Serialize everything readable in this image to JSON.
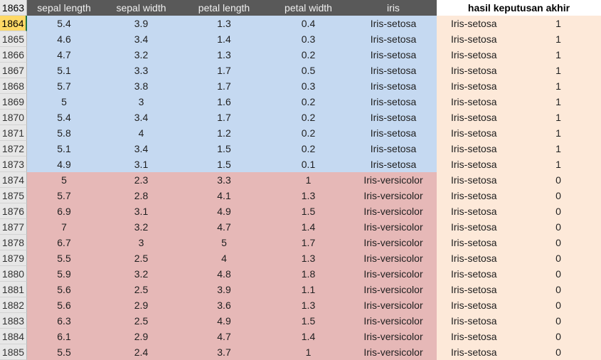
{
  "header": {
    "row_number": "1863",
    "columns": [
      "sepal length",
      "sepal width",
      "petal length",
      "petal width",
      "iris"
    ],
    "result_title": "hasil keputusan akhir"
  },
  "active_row": "1864",
  "rows": [
    {
      "n": "1864",
      "sl": "5.4",
      "sw": "3.9",
      "pl": "1.3",
      "pw": "0.4",
      "iris": "Iris-setosa",
      "dec": "Iris-setosa",
      "v": "1"
    },
    {
      "n": "1865",
      "sl": "4.6",
      "sw": "3.4",
      "pl": "1.4",
      "pw": "0.3",
      "iris": "Iris-setosa",
      "dec": "Iris-setosa",
      "v": "1"
    },
    {
      "n": "1866",
      "sl": "4.7",
      "sw": "3.2",
      "pl": "1.3",
      "pw": "0.2",
      "iris": "Iris-setosa",
      "dec": "Iris-setosa",
      "v": "1"
    },
    {
      "n": "1867",
      "sl": "5.1",
      "sw": "3.3",
      "pl": "1.7",
      "pw": "0.5",
      "iris": "Iris-setosa",
      "dec": "Iris-setosa",
      "v": "1"
    },
    {
      "n": "1868",
      "sl": "5.7",
      "sw": "3.8",
      "pl": "1.7",
      "pw": "0.3",
      "iris": "Iris-setosa",
      "dec": "Iris-setosa",
      "v": "1"
    },
    {
      "n": "1869",
      "sl": "5",
      "sw": "3",
      "pl": "1.6",
      "pw": "0.2",
      "iris": "Iris-setosa",
      "dec": "Iris-setosa",
      "v": "1"
    },
    {
      "n": "1870",
      "sl": "5.4",
      "sw": "3.4",
      "pl": "1.7",
      "pw": "0.2",
      "iris": "Iris-setosa",
      "dec": "Iris-setosa",
      "v": "1"
    },
    {
      "n": "1871",
      "sl": "5.8",
      "sw": "4",
      "pl": "1.2",
      "pw": "0.2",
      "iris": "Iris-setosa",
      "dec": "Iris-setosa",
      "v": "1"
    },
    {
      "n": "1872",
      "sl": "5.1",
      "sw": "3.4",
      "pl": "1.5",
      "pw": "0.2",
      "iris": "Iris-setosa",
      "dec": "Iris-setosa",
      "v": "1"
    },
    {
      "n": "1873",
      "sl": "4.9",
      "sw": "3.1",
      "pl": "1.5",
      "pw": "0.1",
      "iris": "Iris-setosa",
      "dec": "Iris-setosa",
      "v": "1"
    },
    {
      "n": "1874",
      "sl": "5",
      "sw": "2.3",
      "pl": "3.3",
      "pw": "1",
      "iris": "Iris-versicolor",
      "dec": "Iris-setosa",
      "v": "0"
    },
    {
      "n": "1875",
      "sl": "5.7",
      "sw": "2.8",
      "pl": "4.1",
      "pw": "1.3",
      "iris": "Iris-versicolor",
      "dec": "Iris-setosa",
      "v": "0"
    },
    {
      "n": "1876",
      "sl": "6.9",
      "sw": "3.1",
      "pl": "4.9",
      "pw": "1.5",
      "iris": "Iris-versicolor",
      "dec": "Iris-setosa",
      "v": "0"
    },
    {
      "n": "1877",
      "sl": "7",
      "sw": "3.2",
      "pl": "4.7",
      "pw": "1.4",
      "iris": "Iris-versicolor",
      "dec": "Iris-setosa",
      "v": "0"
    },
    {
      "n": "1878",
      "sl": "6.7",
      "sw": "3",
      "pl": "5",
      "pw": "1.7",
      "iris": "Iris-versicolor",
      "dec": "Iris-setosa",
      "v": "0"
    },
    {
      "n": "1879",
      "sl": "5.5",
      "sw": "2.5",
      "pl": "4",
      "pw": "1.3",
      "iris": "Iris-versicolor",
      "dec": "Iris-setosa",
      "v": "0"
    },
    {
      "n": "1880",
      "sl": "5.9",
      "sw": "3.2",
      "pl": "4.8",
      "pw": "1.8",
      "iris": "Iris-versicolor",
      "dec": "Iris-setosa",
      "v": "0"
    },
    {
      "n": "1881",
      "sl": "5.6",
      "sw": "2.5",
      "pl": "3.9",
      "pw": "1.1",
      "iris": "Iris-versicolor",
      "dec": "Iris-setosa",
      "v": "0"
    },
    {
      "n": "1882",
      "sl": "5.6",
      "sw": "2.9",
      "pl": "3.6",
      "pw": "1.3",
      "iris": "Iris-versicolor",
      "dec": "Iris-setosa",
      "v": "0"
    },
    {
      "n": "1883",
      "sl": "6.3",
      "sw": "2.5",
      "pl": "4.9",
      "pw": "1.5",
      "iris": "Iris-versicolor",
      "dec": "Iris-setosa",
      "v": "0"
    },
    {
      "n": "1884",
      "sl": "6.1",
      "sw": "2.9",
      "pl": "4.7",
      "pw": "1.4",
      "iris": "Iris-versicolor",
      "dec": "Iris-setosa",
      "v": "0"
    },
    {
      "n": "1885",
      "sl": "5.5",
      "sw": "2.4",
      "pl": "3.7",
      "pw": "1",
      "iris": "Iris-versicolor",
      "dec": "Iris-setosa",
      "v": "0"
    }
  ],
  "colors": {
    "setosa_fill": "#c5d9f1",
    "versicolor_fill": "#e6b8b7",
    "result_fill": "#fde9d9",
    "header_fill": "#595959",
    "active_row_fill": "#ffd966"
  }
}
